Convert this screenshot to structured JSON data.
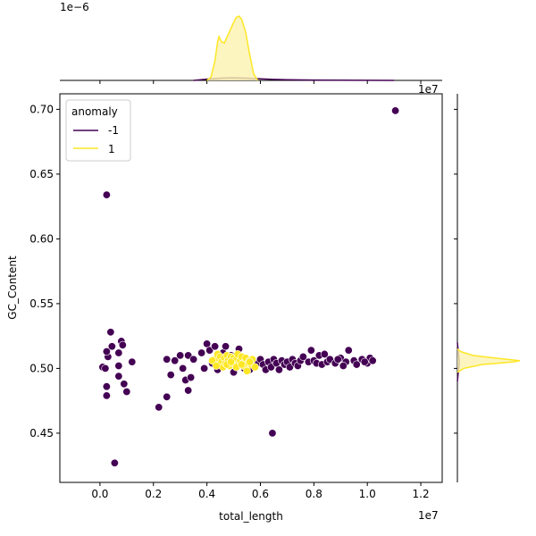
{
  "chart_data": {
    "type": "scatter",
    "xlabel": "total_length",
    "ylabel": "GC_Content",
    "x_offset_label": "1e7",
    "marginal_offset_label": "1e−6",
    "xlim": [
      -1500000,
      12800000
    ],
    "ylim": [
      0.412,
      0.712
    ],
    "x_ticks": [
      0,
      2000000,
      4000000,
      6000000,
      8000000,
      10000000,
      12000000
    ],
    "x_tick_labels": [
      "0.0",
      "0.2",
      "0.4",
      "0.6",
      "0.8",
      "1.0",
      "1.2"
    ],
    "y_ticks": [
      0.45,
      0.5,
      0.55,
      0.6,
      0.65,
      0.7
    ],
    "y_tick_labels": [
      "0.45",
      "0.50",
      "0.55",
      "0.60",
      "0.65",
      "0.70"
    ],
    "legend": {
      "title": "anomaly",
      "entries": [
        {
          "label": "-1",
          "color": "#440154"
        },
        {
          "label": "1",
          "color": "#fde725"
        }
      ],
      "placement": "upper-left"
    },
    "series": [
      {
        "name": "-1",
        "color": "#440154",
        "points": [
          [
            11050000,
            0.699
          ],
          [
            250000,
            0.634
          ],
          [
            6450000,
            0.45
          ],
          [
            550000,
            0.427
          ],
          [
            2200000,
            0.47
          ],
          [
            2500000,
            0.478
          ],
          [
            250000,
            0.479
          ],
          [
            250000,
            0.486
          ],
          [
            1000000,
            0.482
          ],
          [
            900000,
            0.488
          ],
          [
            700000,
            0.494
          ],
          [
            100000,
            0.501
          ],
          [
            200000,
            0.5
          ],
          [
            300000,
            0.509
          ],
          [
            250000,
            0.513
          ],
          [
            400000,
            0.528
          ],
          [
            450000,
            0.517
          ],
          [
            700000,
            0.512
          ],
          [
            800000,
            0.521
          ],
          [
            850000,
            0.518
          ],
          [
            700000,
            0.502
          ],
          [
            1200000,
            0.505
          ],
          [
            2500000,
            0.507
          ],
          [
            2650000,
            0.495
          ],
          [
            2800000,
            0.506
          ],
          [
            3000000,
            0.51
          ],
          [
            3100000,
            0.5
          ],
          [
            3300000,
            0.483
          ],
          [
            3200000,
            0.491
          ],
          [
            3400000,
            0.493
          ],
          [
            3300000,
            0.51
          ],
          [
            3500000,
            0.507
          ],
          [
            3800000,
            0.512
          ],
          [
            3900000,
            0.5
          ],
          [
            4000000,
            0.519
          ],
          [
            4100000,
            0.514
          ],
          [
            4200000,
            0.504
          ],
          [
            4300000,
            0.517
          ],
          [
            4400000,
            0.499
          ],
          [
            4600000,
            0.512
          ],
          [
            4700000,
            0.517
          ],
          [
            4900000,
            0.51
          ],
          [
            5000000,
            0.497
          ],
          [
            5100000,
            0.503
          ],
          [
            5200000,
            0.515
          ],
          [
            5400000,
            0.5
          ],
          [
            5600000,
            0.499
          ],
          [
            5700000,
            0.506
          ],
          [
            5900000,
            0.504
          ],
          [
            6000000,
            0.507
          ],
          [
            6100000,
            0.503
          ],
          [
            6200000,
            0.499
          ],
          [
            6300000,
            0.505
          ],
          [
            6400000,
            0.501
          ],
          [
            6500000,
            0.507
          ],
          [
            6600000,
            0.504
          ],
          [
            6700000,
            0.499
          ],
          [
            6800000,
            0.506
          ],
          [
            6900000,
            0.503
          ],
          [
            7000000,
            0.505
          ],
          [
            7100000,
            0.501
          ],
          [
            7200000,
            0.507
          ],
          [
            7300000,
            0.504
          ],
          [
            7400000,
            0.502
          ],
          [
            7500000,
            0.506
          ],
          [
            7600000,
            0.509
          ],
          [
            7800000,
            0.505
          ],
          [
            7900000,
            0.514
          ],
          [
            8000000,
            0.506
          ],
          [
            8100000,
            0.504
          ],
          [
            8200000,
            0.51
          ],
          [
            8300000,
            0.503
          ],
          [
            8400000,
            0.511
          ],
          [
            8500000,
            0.505
          ],
          [
            8600000,
            0.507
          ],
          [
            8800000,
            0.504
          ],
          [
            9000000,
            0.508
          ],
          [
            9200000,
            0.505
          ],
          [
            9300000,
            0.514
          ],
          [
            9500000,
            0.506
          ],
          [
            9600000,
            0.503
          ],
          [
            9800000,
            0.507
          ],
          [
            10000000,
            0.504
          ],
          [
            10100000,
            0.508
          ],
          [
            10200000,
            0.506
          ],
          [
            9900000,
            0.505
          ],
          [
            8900000,
            0.507
          ],
          [
            9100000,
            0.502
          ]
        ]
      },
      {
        "name": "1",
        "color": "#fde725",
        "points": [
          [
            4300000,
            0.507
          ],
          [
            4400000,
            0.511
          ],
          [
            4450000,
            0.503
          ],
          [
            4500000,
            0.509
          ],
          [
            4550000,
            0.505
          ],
          [
            4600000,
            0.501
          ],
          [
            4650000,
            0.508
          ],
          [
            4700000,
            0.504
          ],
          [
            4750000,
            0.51
          ],
          [
            4800000,
            0.506
          ],
          [
            4850000,
            0.502
          ],
          [
            4900000,
            0.509
          ],
          [
            4950000,
            0.505
          ],
          [
            5000000,
            0.508
          ],
          [
            5050000,
            0.503
          ],
          [
            5100000,
            0.507
          ],
          [
            5150000,
            0.511
          ],
          [
            5200000,
            0.504
          ],
          [
            5250000,
            0.506
          ],
          [
            5300000,
            0.509
          ],
          [
            5350000,
            0.502
          ],
          [
            5400000,
            0.505
          ],
          [
            5450000,
            0.508
          ],
          [
            5500000,
            0.498
          ],
          [
            5550000,
            0.504
          ],
          [
            5600000,
            0.506
          ],
          [
            5650000,
            0.503
          ],
          [
            5700000,
            0.507
          ],
          [
            5800000,
            0.501
          ],
          [
            4200000,
            0.506
          ],
          [
            4350000,
            0.502
          ],
          [
            4750000,
            0.503
          ],
          [
            5100000,
            0.501
          ],
          [
            5300000,
            0.503
          ],
          [
            4900000,
            0.505
          ],
          [
            5600000,
            0.505
          ]
        ]
      }
    ],
    "marginal_x": [
      {
        "series": "-1",
        "color": "#440154",
        "fill": "none",
        "peak_1e6": 0.04,
        "density": [
          [
            3500000,
            0
          ],
          [
            4000000,
            0.02
          ],
          [
            4500000,
            0.035
          ],
          [
            5000000,
            0.04
          ],
          [
            5500000,
            0.035
          ],
          [
            6000000,
            0.025
          ],
          [
            6500000,
            0.015
          ],
          [
            7000000,
            0.01
          ],
          [
            8000000,
            0.006
          ],
          [
            9000000,
            0.004
          ],
          [
            10000000,
            0.002
          ],
          [
            11000000,
            0
          ]
        ]
      },
      {
        "series": "1",
        "color": "#fde725",
        "fill": "#fdf2b0",
        "peak_1e6": 1.0,
        "density": [
          [
            4000000,
            0
          ],
          [
            4150000,
            0.05
          ],
          [
            4300000,
            0.3
          ],
          [
            4400000,
            0.6
          ],
          [
            4450000,
            0.68
          ],
          [
            4550000,
            0.6
          ],
          [
            4650000,
            0.58
          ],
          [
            4800000,
            0.72
          ],
          [
            5000000,
            0.9
          ],
          [
            5100000,
            0.98
          ],
          [
            5200000,
            1.0
          ],
          [
            5300000,
            0.95
          ],
          [
            5450000,
            0.75
          ],
          [
            5600000,
            0.4
          ],
          [
            5750000,
            0.1
          ],
          [
            5900000,
            0
          ]
        ]
      }
    ],
    "marginal_y": [
      {
        "series": "-1",
        "color": "#440154",
        "fill": "none",
        "density": [
          [
            0.49,
            0
          ],
          [
            0.5,
            0.02
          ],
          [
            0.505,
            0.03
          ],
          [
            0.51,
            0.02
          ],
          [
            0.52,
            0
          ]
        ]
      },
      {
        "series": "1",
        "color": "#fde725",
        "fill": "#fdf2b0",
        "density": [
          [
            0.497,
            0
          ],
          [
            0.5,
            0.1
          ],
          [
            0.503,
            0.4
          ],
          [
            0.505,
            0.9
          ],
          [
            0.506,
            1.0
          ],
          [
            0.508,
            0.6
          ],
          [
            0.51,
            0.25
          ],
          [
            0.513,
            0.05
          ],
          [
            0.515,
            0
          ]
        ]
      }
    ]
  }
}
